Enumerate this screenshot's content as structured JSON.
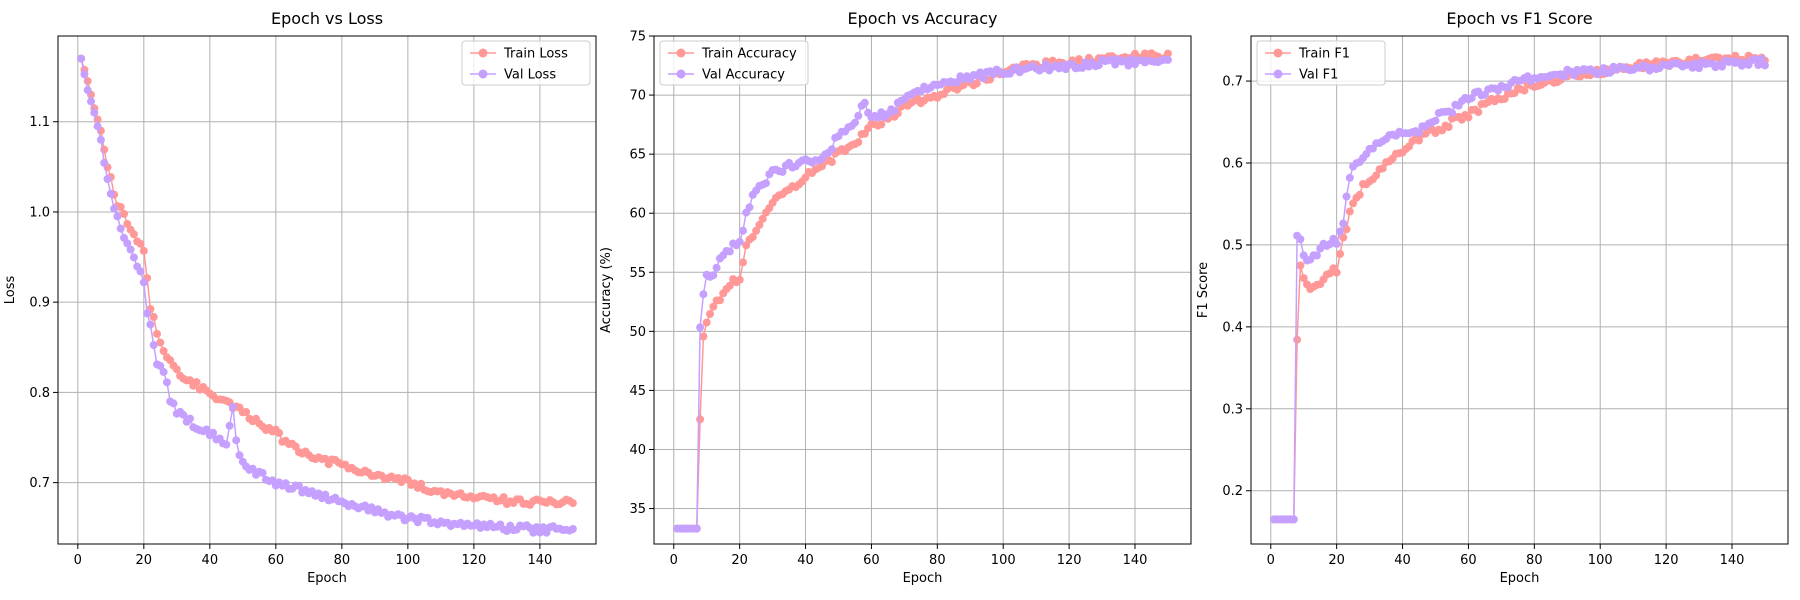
{
  "colors": {
    "train": "#ff9896",
    "val": "#c5a0ff"
  },
  "chart_data": [
    {
      "type": "line",
      "title": "Epoch vs Loss",
      "xlabel": "Epoch",
      "ylabel": "Loss",
      "xlim": [
        -6,
        157
      ],
      "ylim": [
        0.632,
        1.195
      ],
      "xticks": [
        0,
        20,
        40,
        60,
        80,
        100,
        120,
        140
      ],
      "yticks": [
        0.7,
        0.8,
        0.9,
        1.0,
        1.1
      ],
      "ytick_labels": [
        "0.7",
        "0.8",
        "0.9",
        "1.0",
        "1.1"
      ],
      "grid": true,
      "legend_position": "top-right",
      "x_epochs": [
        1,
        150
      ],
      "series": [
        {
          "name": "Train Loss",
          "key": "train",
          "x": [
            1,
            3,
            5,
            7,
            8,
            10,
            12,
            15,
            17,
            20,
            22,
            25,
            27,
            30,
            35,
            40,
            45,
            50,
            55,
            60,
            65,
            70,
            75,
            80,
            90,
            100,
            110,
            120,
            130,
            140,
            150
          ],
          "y": [
            1.17,
            1.145,
            1.115,
            1.09,
            1.07,
            1.035,
            1.01,
            0.99,
            0.975,
            0.955,
            0.895,
            0.855,
            0.84,
            0.825,
            0.81,
            0.8,
            0.79,
            0.78,
            0.765,
            0.755,
            0.74,
            0.73,
            0.725,
            0.72,
            0.71,
            0.7,
            0.69,
            0.685,
            0.68,
            0.678,
            0.678
          ]
        },
        {
          "name": "Val Loss",
          "key": "val",
          "x": [
            1,
            3,
            5,
            7,
            8,
            10,
            12,
            15,
            17,
            20,
            21,
            22,
            24,
            26,
            28,
            30,
            35,
            40,
            45,
            47,
            48,
            50,
            55,
            60,
            65,
            70,
            75,
            80,
            90,
            100,
            110,
            120,
            130,
            140,
            150
          ],
          "y": [
            1.17,
            1.135,
            1.11,
            1.08,
            1.055,
            1.02,
            0.995,
            0.965,
            0.95,
            0.925,
            0.885,
            0.875,
            0.83,
            0.825,
            0.79,
            0.78,
            0.765,
            0.755,
            0.745,
            0.78,
            0.745,
            0.72,
            0.71,
            0.7,
            0.695,
            0.69,
            0.685,
            0.678,
            0.668,
            0.66,
            0.657,
            0.652,
            0.65,
            0.648,
            0.648
          ]
        }
      ]
    },
    {
      "type": "line",
      "title": "Epoch vs Accuracy",
      "xlabel": "Epoch",
      "ylabel": "Accuracy (%)",
      "xlim": [
        -6,
        157
      ],
      "ylim": [
        32.0,
        75.0
      ],
      "xticks": [
        0,
        20,
        40,
        60,
        80,
        100,
        120,
        140
      ],
      "yticks": [
        35,
        40,
        45,
        50,
        55,
        60,
        65,
        70,
        75
      ],
      "ytick_labels": [
        "35",
        "40",
        "45",
        "50",
        "55",
        "60",
        "65",
        "70",
        "75"
      ],
      "grid": true,
      "legend_position": "top-left",
      "x_epochs": [
        1,
        150
      ],
      "series": [
        {
          "name": "Train Accuracy",
          "key": "train",
          "x": [
            1,
            3,
            5,
            6,
            7,
            8,
            9,
            10,
            12,
            15,
            17,
            20,
            22,
            25,
            27,
            30,
            35,
            40,
            45,
            50,
            55,
            60,
            65,
            70,
            75,
            80,
            90,
            100,
            110,
            120,
            130,
            140,
            150
          ],
          "y": [
            33.3,
            33.3,
            33.3,
            33.3,
            33.3,
            42.5,
            49.5,
            51,
            52,
            53,
            54,
            54.5,
            57,
            58.5,
            59.5,
            61,
            62,
            63,
            64,
            65,
            66,
            67.5,
            68,
            69,
            69.5,
            70,
            71,
            72,
            72.5,
            72.8,
            73,
            73.2,
            73.3
          ]
        },
        {
          "name": "Val Accuracy",
          "key": "val",
          "x": [
            1,
            3,
            5,
            6,
            7,
            8,
            9,
            10,
            12,
            15,
            17,
            20,
            22,
            25,
            27,
            30,
            35,
            40,
            45,
            50,
            55,
            58,
            60,
            65,
            70,
            75,
            80,
            90,
            100,
            110,
            120,
            130,
            140,
            150
          ],
          "y": [
            33.3,
            33.3,
            33.3,
            33.3,
            33.3,
            50.5,
            53,
            54.5,
            55,
            56.5,
            57,
            57.5,
            60,
            62,
            62.5,
            63.5,
            64,
            64.5,
            64.5,
            66.5,
            67.5,
            69.5,
            68,
            68.5,
            69.5,
            70.5,
            71,
            71.5,
            72,
            72.3,
            72.5,
            72.7,
            72.8,
            72.7
          ]
        }
      ]
    },
    {
      "type": "line",
      "title": "Epoch vs F1 Score",
      "xlabel": "Epoch",
      "ylabel": "F1 Score",
      "xlim": [
        -6,
        157
      ],
      "ylim": [
        0.135,
        0.755
      ],
      "xticks": [
        0,
        20,
        40,
        60,
        80,
        100,
        120,
        140
      ],
      "yticks": [
        0.2,
        0.3,
        0.4,
        0.5,
        0.6,
        0.7
      ],
      "ytick_labels": [
        "0.2",
        "0.3",
        "0.4",
        "0.5",
        "0.6",
        "0.7"
      ],
      "grid": true,
      "legend_position": "top-left",
      "x_epochs": [
        1,
        150
      ],
      "series": [
        {
          "name": "Train F1",
          "key": "train",
          "x": [
            1,
            3,
            5,
            6,
            7,
            8,
            9,
            10,
            12,
            15,
            17,
            20,
            22,
            25,
            27,
            30,
            35,
            40,
            45,
            50,
            55,
            60,
            65,
            70,
            75,
            80,
            90,
            100,
            110,
            120,
            130,
            140,
            150
          ],
          "y": [
            0.165,
            0.165,
            0.165,
            0.165,
            0.165,
            0.385,
            0.475,
            0.46,
            0.45,
            0.455,
            0.465,
            0.47,
            0.51,
            0.55,
            0.565,
            0.58,
            0.6,
            0.615,
            0.63,
            0.64,
            0.65,
            0.66,
            0.67,
            0.68,
            0.69,
            0.695,
            0.705,
            0.712,
            0.718,
            0.722,
            0.725,
            0.727,
            0.728
          ]
        },
        {
          "name": "Val F1",
          "key": "val",
          "x": [
            1,
            3,
            5,
            6,
            7,
            8,
            9,
            10,
            12,
            15,
            17,
            20,
            22,
            24,
            26,
            28,
            30,
            35,
            40,
            45,
            50,
            55,
            60,
            65,
            70,
            75,
            80,
            90,
            100,
            110,
            120,
            130,
            140,
            150
          ],
          "y": [
            0.165,
            0.165,
            0.165,
            0.165,
            0.165,
            0.51,
            0.505,
            0.49,
            0.48,
            0.495,
            0.5,
            0.505,
            0.53,
            0.585,
            0.6,
            0.61,
            0.62,
            0.63,
            0.64,
            0.64,
            0.655,
            0.665,
            0.68,
            0.685,
            0.69,
            0.7,
            0.705,
            0.71,
            0.713,
            0.716,
            0.718,
            0.72,
            0.722,
            0.723
          ]
        }
      ]
    }
  ]
}
